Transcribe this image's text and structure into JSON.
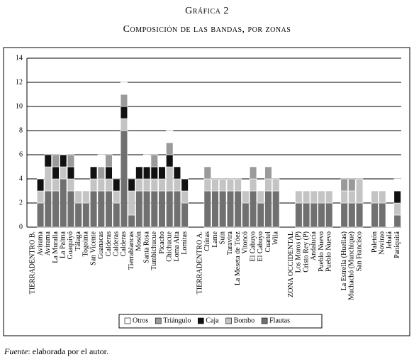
{
  "chart_data": {
    "type": "stacked_bar",
    "title": "Gráfica 2",
    "subtitle": "Composición de las bandas, por zonas",
    "categories": [
      "TIERRADENTRO B.",
      "Avirama",
      "Avirama",
      "La Muralla",
      "La Palma",
      "Guaquiyó",
      "Tálaga",
      "Togoima",
      "San Vicente",
      "Guanacas",
      "Calderas",
      "Calderas",
      "Calderas",
      "Tierrablancas",
      "Mosón",
      "Santa Rosa",
      "Tumbichucue",
      "Picacho",
      "Chichucue",
      "Loma Alta",
      "Lomitas",
      null,
      "TIERRADENTRO A.",
      "Chinas",
      "Lame",
      "Suin",
      "Taravira",
      "La Meseta de Tóez",
      "Vitoncó",
      "El Cabuyo",
      "El Cabuyo",
      "Cuartel",
      "Wila",
      null,
      "ZONA OCCIDENTAL",
      "Los Moros (P)",
      "Cristo Rey (P)",
      "Andalucía",
      "Pueblo Nuevo",
      "Pueblo Nuevo",
      null,
      "La Estrella (Huellas)",
      "Muchachó (Munchique)",
      "San Francisco",
      null,
      "Paletón",
      "Novirao",
      "Jebalá",
      "Paniquitá"
    ],
    "series": [
      {
        "name": "Otros",
        "color": "#ffffff",
        "values": [
          null,
          1,
          0,
          0,
          1,
          0,
          0,
          0,
          0,
          1,
          0,
          0,
          1,
          0,
          0,
          1,
          0,
          0,
          1,
          0,
          1,
          null,
          null,
          0,
          0,
          0,
          0,
          0,
          0,
          0,
          0,
          0,
          0,
          null,
          null,
          0,
          0,
          0,
          0,
          0,
          null,
          0,
          0,
          0,
          null,
          0,
          0,
          1,
          1
        ]
      },
      {
        "name": "Triángulo",
        "color": "#9a9a9a",
        "values": [
          null,
          0,
          0,
          1,
          0,
          1,
          0,
          0,
          0,
          1,
          1,
          0,
          1,
          0,
          0,
          0,
          1,
          0,
          1,
          0,
          0,
          null,
          null,
          1,
          0,
          0,
          0,
          0,
          0,
          1,
          0,
          1,
          0,
          null,
          null,
          0,
          0,
          0,
          0,
          0,
          null,
          1,
          1,
          0,
          null,
          0,
          0,
          0,
          0
        ]
      },
      {
        "name": "Caja",
        "color": "#111111",
        "values": [
          null,
          1,
          1,
          1,
          1,
          1,
          0,
          0,
          1,
          0,
          1,
          1,
          1,
          1,
          1,
          1,
          1,
          1,
          1,
          1,
          1,
          null,
          null,
          0,
          0,
          0,
          0,
          0,
          0,
          0,
          0,
          0,
          0,
          null,
          null,
          0,
          0,
          0,
          0,
          0,
          null,
          0,
          0,
          0,
          null,
          0,
          0,
          0,
          1
        ]
      },
      {
        "name": "Bombo",
        "color": "#c4c4c4",
        "values": [
          null,
          1,
          2,
          1,
          1,
          1,
          1,
          1,
          1,
          1,
          1,
          1,
          1,
          2,
          1,
          1,
          1,
          1,
          2,
          1,
          1,
          null,
          null,
          1,
          1,
          1,
          1,
          1,
          1,
          1,
          1,
          1,
          1,
          null,
          null,
          1,
          1,
          1,
          1,
          1,
          null,
          1,
          1,
          2,
          null,
          1,
          1,
          0,
          1
        ]
      },
      {
        "name": "Flautas",
        "color": "#707070",
        "values": [
          null,
          2,
          3,
          3,
          4,
          3,
          2,
          2,
          3,
          3,
          3,
          2,
          8,
          1,
          3,
          3,
          3,
          3,
          3,
          3,
          2,
          null,
          null,
          3,
          3,
          3,
          3,
          3,
          2,
          3,
          2,
          3,
          3,
          null,
          null,
          2,
          2,
          2,
          2,
          2,
          null,
          2,
          2,
          2,
          null,
          2,
          2,
          0,
          1
        ]
      }
    ],
    "ylim": [
      0,
      14
    ],
    "yticks": [
      0,
      2,
      4,
      6,
      8,
      10,
      12,
      14
    ],
    "grid": true,
    "legend": "bottom"
  },
  "footer": {
    "label": "Fuente",
    "text": ": elaborada por el autor."
  }
}
